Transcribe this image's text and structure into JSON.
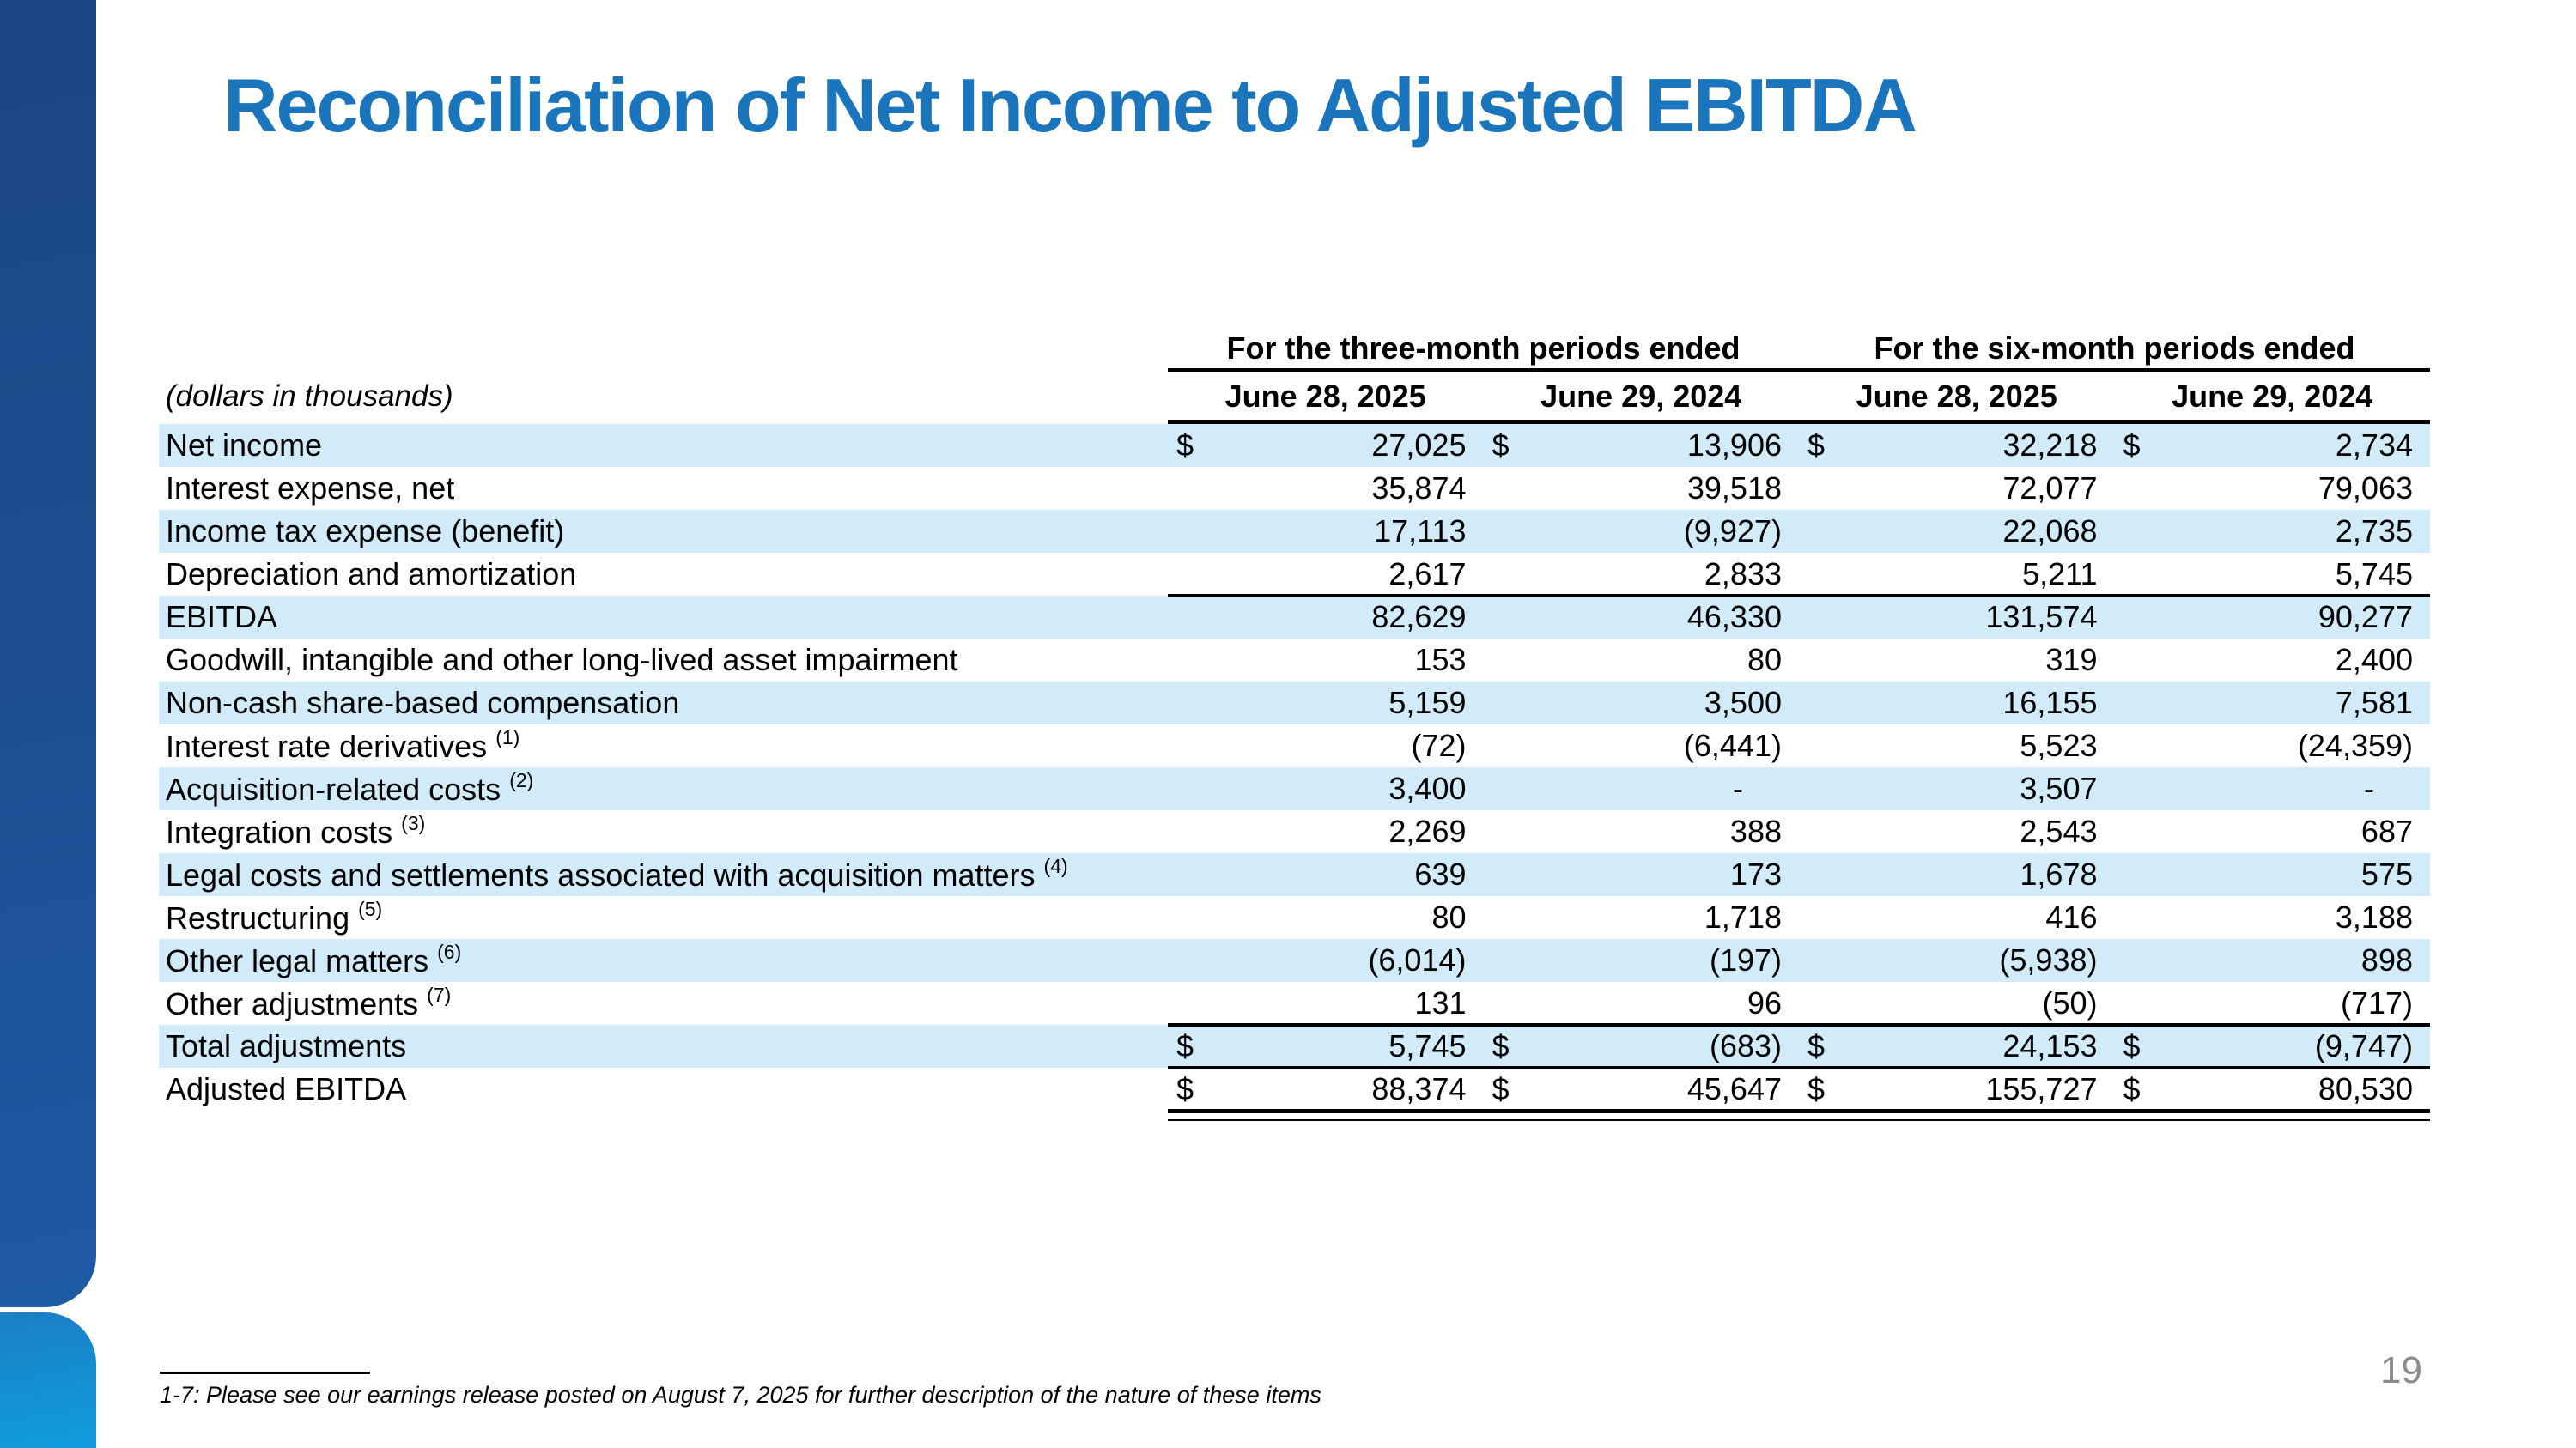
{
  "slide": {
    "title": "Reconciliation of Net Income to Adjusted EBITDA",
    "page_number": "19",
    "footnote": "1-7: Please see our earnings release posted on August 7, 2025 for further description of the nature of these items"
  },
  "table": {
    "units_label": "(dollars in thousands)",
    "group_headers": [
      "For the three-month periods ended",
      "For the six-month periods ended"
    ],
    "column_headers": [
      "June 28, 2025",
      "June 29, 2024",
      "June 28, 2025",
      "June 29, 2024"
    ],
    "rows": [
      {
        "label": "Net income",
        "sup": "",
        "dollar": true,
        "striped": true,
        "values": [
          "27,025",
          "13,906",
          "32,218",
          "2,734"
        ]
      },
      {
        "label": "Interest expense, net",
        "sup": "",
        "dollar": false,
        "striped": false,
        "values": [
          "35,874",
          "39,518",
          "72,077",
          "79,063"
        ]
      },
      {
        "label": "Income tax expense (benefit)",
        "sup": "",
        "dollar": false,
        "striped": true,
        "values": [
          "17,113",
          "(9,927)",
          "22,068",
          "2,735"
        ]
      },
      {
        "label": "Depreciation and amortization",
        "sup": "",
        "dollar": false,
        "striped": false,
        "rule_below": true,
        "values": [
          "2,617",
          "2,833",
          "5,211",
          "5,745"
        ]
      },
      {
        "label": "EBITDA",
        "sup": "",
        "dollar": false,
        "striped": true,
        "values": [
          "82,629",
          "46,330",
          "131,574",
          "90,277"
        ]
      },
      {
        "label": "Goodwill, intangible and other long-lived asset impairment",
        "sup": "",
        "dollar": false,
        "striped": false,
        "values": [
          "153",
          "80",
          "319",
          "2,400"
        ]
      },
      {
        "label": "Non-cash share-based compensation",
        "sup": "",
        "dollar": false,
        "striped": true,
        "values": [
          "5,159",
          "3,500",
          "16,155",
          "7,581"
        ]
      },
      {
        "label": "Interest rate derivatives",
        "sup": "(1)",
        "dollar": false,
        "striped": false,
        "values": [
          "(72)",
          "(6,441)",
          "5,523",
          "(24,359)"
        ]
      },
      {
        "label": "Acquisition-related costs",
        "sup": "(2)",
        "dollar": false,
        "striped": true,
        "values": [
          "3,400",
          "-",
          "3,507",
          "-"
        ]
      },
      {
        "label": "Integration costs",
        "sup": "(3)",
        "dollar": false,
        "striped": false,
        "values": [
          "2,269",
          "388",
          "2,543",
          "687"
        ]
      },
      {
        "label": "Legal costs and settlements associated with acquisition matters",
        "sup": "(4)",
        "dollar": false,
        "striped": true,
        "values": [
          "639",
          "173",
          "1,678",
          "575"
        ]
      },
      {
        "label": "Restructuring",
        "sup": "(5)",
        "dollar": false,
        "striped": false,
        "values": [
          "80",
          "1,718",
          "416",
          "3,188"
        ]
      },
      {
        "label": "Other legal matters",
        "sup": "(6)",
        "dollar": false,
        "striped": true,
        "values": [
          "(6,014)",
          "(197)",
          "(5,938)",
          "898"
        ]
      },
      {
        "label": "Other adjustments",
        "sup": "(7)",
        "dollar": false,
        "striped": false,
        "values": [
          "131",
          "96",
          "(50)",
          "(717)"
        ]
      },
      {
        "label": "Total adjustments",
        "sup": "",
        "dollar": true,
        "striped": true,
        "rule_above": true,
        "rule_below": true,
        "values": [
          "5,745",
          "(683)",
          "24,153",
          "(9,747)"
        ]
      },
      {
        "label": "Adjusted EBITDA",
        "sup": "",
        "dollar": true,
        "striped": false,
        "double_rule_below": true,
        "values": [
          "88,374",
          "45,647",
          "155,727",
          "80,530"
        ]
      }
    ]
  },
  "colors": {
    "title_blue": "#1b75bc",
    "row_stripe": "#d2ebf9",
    "rule_black": "#000000",
    "sidebar_dark_top": "#1c4685",
    "sidebar_dark_bottom": "#1f5aa5",
    "sidebar_light_top": "#1b7fc4",
    "sidebar_light_bottom": "#0f9ddf",
    "page_number_gray": "#8c8c8c"
  }
}
